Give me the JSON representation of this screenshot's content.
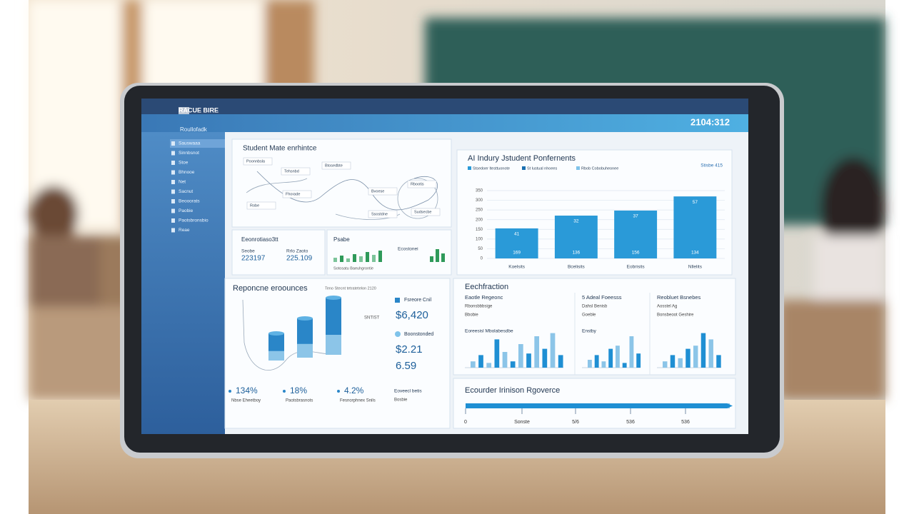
{
  "header": {
    "app_name": "RACUE BIRE",
    "clock": "2104:312",
    "subtitle": "Roullofadk"
  },
  "sidebar": {
    "items": [
      "Sauswaaa",
      "Sinnbsnot",
      "Stoe",
      "Bhnooe",
      "Net",
      "Sacnut",
      "Beooorats",
      "Paobie",
      "Paotsbronsbio",
      "Reae"
    ]
  },
  "flow_panel": {
    "title": "Student Mate enrhintce",
    "nodes": [
      "Poonnbsla",
      "Tehsnbd",
      "Btosedbte",
      "Fhorade",
      "Robe",
      "Bvoese",
      "Rbootis",
      "Ssostdne",
      "Sudsecbe"
    ]
  },
  "stats_panel": {
    "title": "Eeonrotiaso3tt",
    "items": [
      {
        "label": "Seobe",
        "value": "223197"
      },
      {
        "label": "Rrlo Zaoto",
        "value": "225.109"
      }
    ]
  },
  "mini_panel": {
    "title": "Psabe",
    "side_title": "Ecostonei",
    "caption": "Sotosatu Baeuhgrontie",
    "values": [
      6,
      9,
      5,
      11,
      8,
      14,
      10,
      16
    ],
    "side_values": [
      8,
      18,
      12
    ]
  },
  "chart_data": {
    "type": "bar",
    "title": "AI Indury Jstudent Ponfernents",
    "legend_note": "Stisbe 415",
    "categories": [
      "Koelsits",
      "Bcelisits",
      "Eobrisits",
      "Nllelits"
    ],
    "series": [
      {
        "name": "Stsedoer ltesttuonote",
        "color": "#2a9ad8",
        "values": [
          155,
          221,
          247,
          320
        ]
      },
      {
        "name": "St lustual nhoees",
        "color": "#1a6fb0",
        "values": [
          null,
          null,
          null,
          null
        ]
      },
      {
        "name": "Rbob Cobobuheonee",
        "color": "#7fc3ea",
        "values": [
          null,
          null,
          null,
          null
        ]
      }
    ],
    "top_labels": [
      "41",
      "32",
      "37",
      "57"
    ],
    "bottom_labels": [
      "169",
      "136",
      "156",
      "134"
    ],
    "ylim": [
      0,
      350
    ],
    "yticks": [
      0,
      50,
      100,
      150,
      200,
      250,
      300,
      350
    ],
    "grid": true
  },
  "responses_panel": {
    "title": "Reponcne eroounces",
    "subtitle": "Teno Stecnt tetratetelon 2120",
    "axis_note": "SNTIST",
    "cylinders": [
      38,
      55,
      80
    ],
    "stats": [
      {
        "label": "Fsreore Cnil",
        "value": "$6,420"
      },
      {
        "label": "Boonstonded",
        "value": "$2.21"
      },
      {
        "label": "",
        "value": "6.59"
      }
    ],
    "percents": [
      {
        "value": "134%",
        "label": "Nbse Eheetboy"
      },
      {
        "value": "18%",
        "label": "Paotsbrasnots"
      },
      {
        "value": "4.2%",
        "label": "Fesnorphnex Snils"
      }
    ],
    "note_title": "Eoveecl betis",
    "note_sub": "Bosbie"
  },
  "tech_panel": {
    "title": "Eechfraction",
    "columns": [
      {
        "title": "Eaotle Regeonc",
        "lines": [
          "Rbonsbbbsige",
          "Bbobie"
        ],
        "sub": "Eoreesisl Mbolabesdbe",
        "values": [
          4,
          8,
          3,
          18,
          10,
          4,
          15,
          9,
          20,
          12,
          22,
          8
        ]
      },
      {
        "title": "5 Adeal Foeesss",
        "lines": [
          "Dahsl Benisb",
          "Goeble"
        ],
        "sub": "Enstby",
        "values": [
          5,
          8,
          4,
          12,
          14,
          3,
          20,
          9
        ]
      },
      {
        "title": "Reobluet Bsnebes",
        "lines": [
          "Aosstel Ag",
          "Bonsbeoot Geshire"
        ],
        "sub": "",
        "values": [
          4,
          8,
          6,
          12,
          14,
          22,
          18,
          8
        ]
      }
    ]
  },
  "progress_panel": {
    "title": "Ecourder Irinison Rgoverce",
    "ticks": [
      "0",
      "Sonste",
      "5/6",
      "536",
      "536"
    ]
  }
}
